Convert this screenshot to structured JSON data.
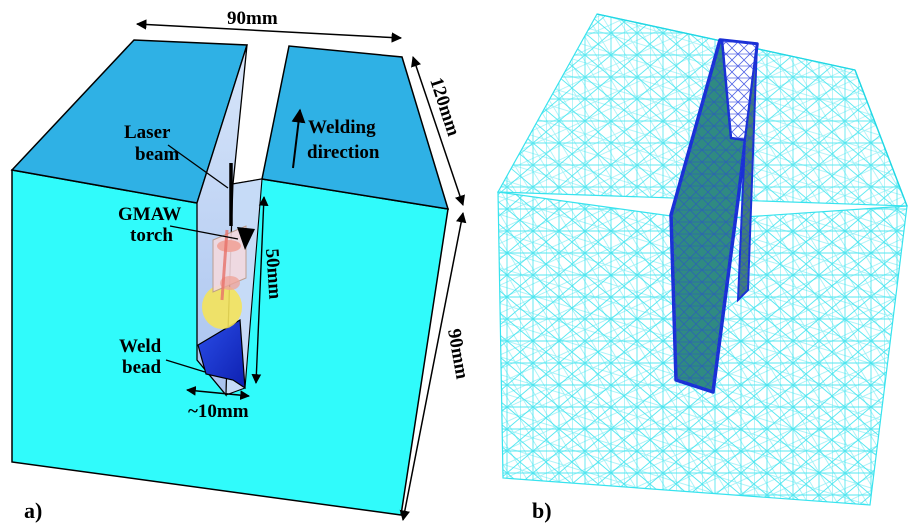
{
  "panel_a": {
    "label": "a)",
    "dims": {
      "width": "90mm",
      "depth": "120mm",
      "height": "90mm",
      "groove_depth": "50mm",
      "groove_width": "~10mm"
    },
    "labels": {
      "laser_line1": "Laser",
      "laser_line2": "beam",
      "welding_line1": "Welding",
      "welding_line2": "direction",
      "gmaw_line1": "GMAW",
      "gmaw_line2": "torch",
      "weld_line1": "Weld",
      "weld_line2": "bead"
    },
    "colors": {
      "top_face": "#2fb1e5",
      "front_face": "#30fbfb",
      "groove_wall": "#bcd4f5",
      "weld_bead": "#1f3bd8",
      "outline": "#000000"
    }
  },
  "panel_b": {
    "label": "b)",
    "colors": {
      "mesh": "#33e6ee",
      "groove_mesh": "#1a30d6",
      "groove_fill": "#2f8a82"
    }
  }
}
